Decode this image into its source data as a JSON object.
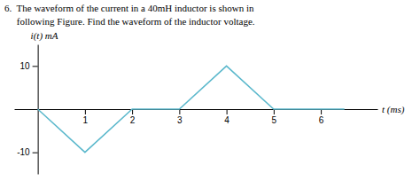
{
  "chart_data": {
    "type": "line",
    "title": "6.  The waveform of the current in a 40mH inductor is shown in",
    "subtitle": "     following Figure. Find the waveform of the inductor voltage.",
    "xlabel": "t (ms)",
    "ylabel": "i(t) mA",
    "x": [
      0,
      1,
      2,
      3,
      4,
      5,
      6.5
    ],
    "values": [
      0,
      -10,
      0,
      0,
      10,
      0,
      0
    ],
    "color": "#5ab8cc",
    "xlim": [
      -0.5,
      7.2
    ],
    "ylim": [
      -15,
      15
    ],
    "xticks": [
      1,
      2,
      3,
      4,
      5,
      6
    ],
    "yticks": [
      -10,
      10
    ]
  }
}
